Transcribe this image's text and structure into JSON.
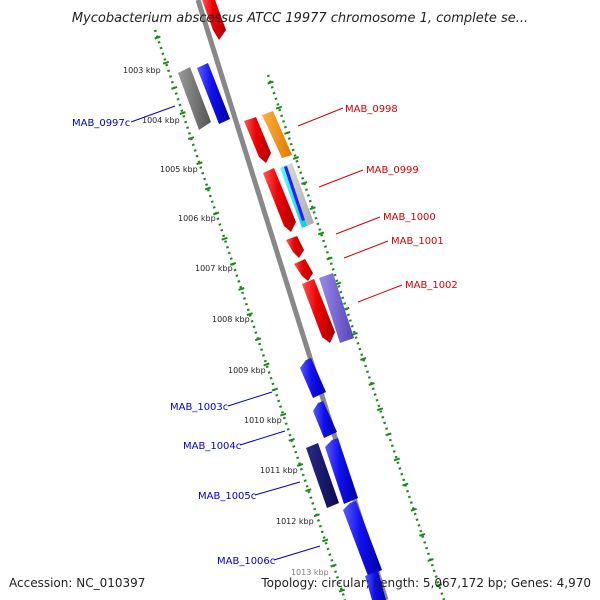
{
  "title": "Mycobacterium abscessus ATCC 19977 chromosome 1, complete se...",
  "accession": "Accession: NC_010397",
  "summary": "Topology: circular; Length: 5,067,172 bp; Genes: 4,970",
  "ticks": [
    "1003 kbp",
    "1004 kbp",
    "1005 kbp",
    "1006 kbp",
    "1007 kbp",
    "1008 kbp",
    "1009 kbp",
    "1010 kbp",
    "1011 kbp",
    "1012 kbp",
    "1013 kbp"
  ],
  "gene_labels": [
    {
      "text": "MAB_0997c",
      "strand": "reverse"
    },
    {
      "text": "MAB_0998",
      "strand": "forward"
    },
    {
      "text": "MAB_0999",
      "strand": "forward"
    },
    {
      "text": "MAB_1000",
      "strand": "forward"
    },
    {
      "text": "MAB_1001",
      "strand": "forward"
    },
    {
      "text": "MAB_1002",
      "strand": "forward"
    },
    {
      "text": "MAB_1003c",
      "strand": "reverse"
    },
    {
      "text": "MAB_1004c",
      "strand": "reverse"
    },
    {
      "text": "MAB_1005c",
      "strand": "reverse"
    },
    {
      "text": "MAB_1006c",
      "strand": "reverse"
    }
  ],
  "colors": {
    "forward_label": "#d40000",
    "reverse_label": "#0000cc",
    "backbone": "#888888",
    "tick_green": "#1a8a1a"
  }
}
